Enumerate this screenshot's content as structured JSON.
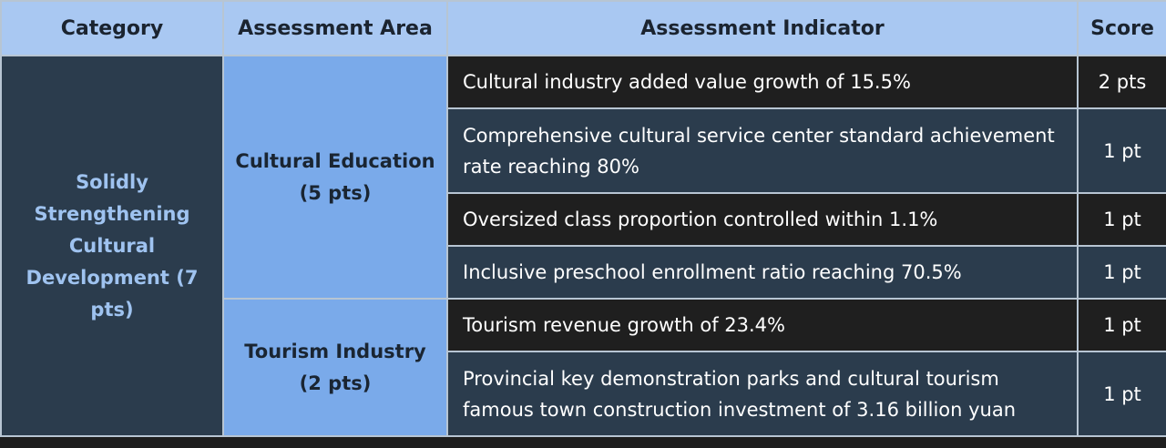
{
  "headers": {
    "category": "Category",
    "area": "Assessment Area",
    "indicator": "Assessment Indicator",
    "score": "Score"
  },
  "category": "Solidly Strengthening Cultural Development (7 pts)",
  "areas": [
    {
      "name": "Cultural Education",
      "points": "(5 pts)"
    },
    {
      "name": "Tourism Industry",
      "points": "(2 pts)"
    }
  ],
  "rows": [
    {
      "indicator": "Cultural industry added value growth of 15.5%",
      "score": "2 pts"
    },
    {
      "indicator": "Comprehensive cultural service center standard achievement rate reaching 80%",
      "score": "1 pt"
    },
    {
      "indicator": "Oversized class proportion controlled within 1.1%",
      "score": "1 pt"
    },
    {
      "indicator": "Inclusive preschool enrollment ratio reaching 70.5%",
      "score": "1 pt"
    },
    {
      "indicator": "Tourism revenue growth of 23.4%",
      "score": "1 pt"
    },
    {
      "indicator": "Provincial key demonstration parks and cultural tourism famous town construction investment of 3.16 billion yuan",
      "score": "1 pt"
    }
  ]
}
